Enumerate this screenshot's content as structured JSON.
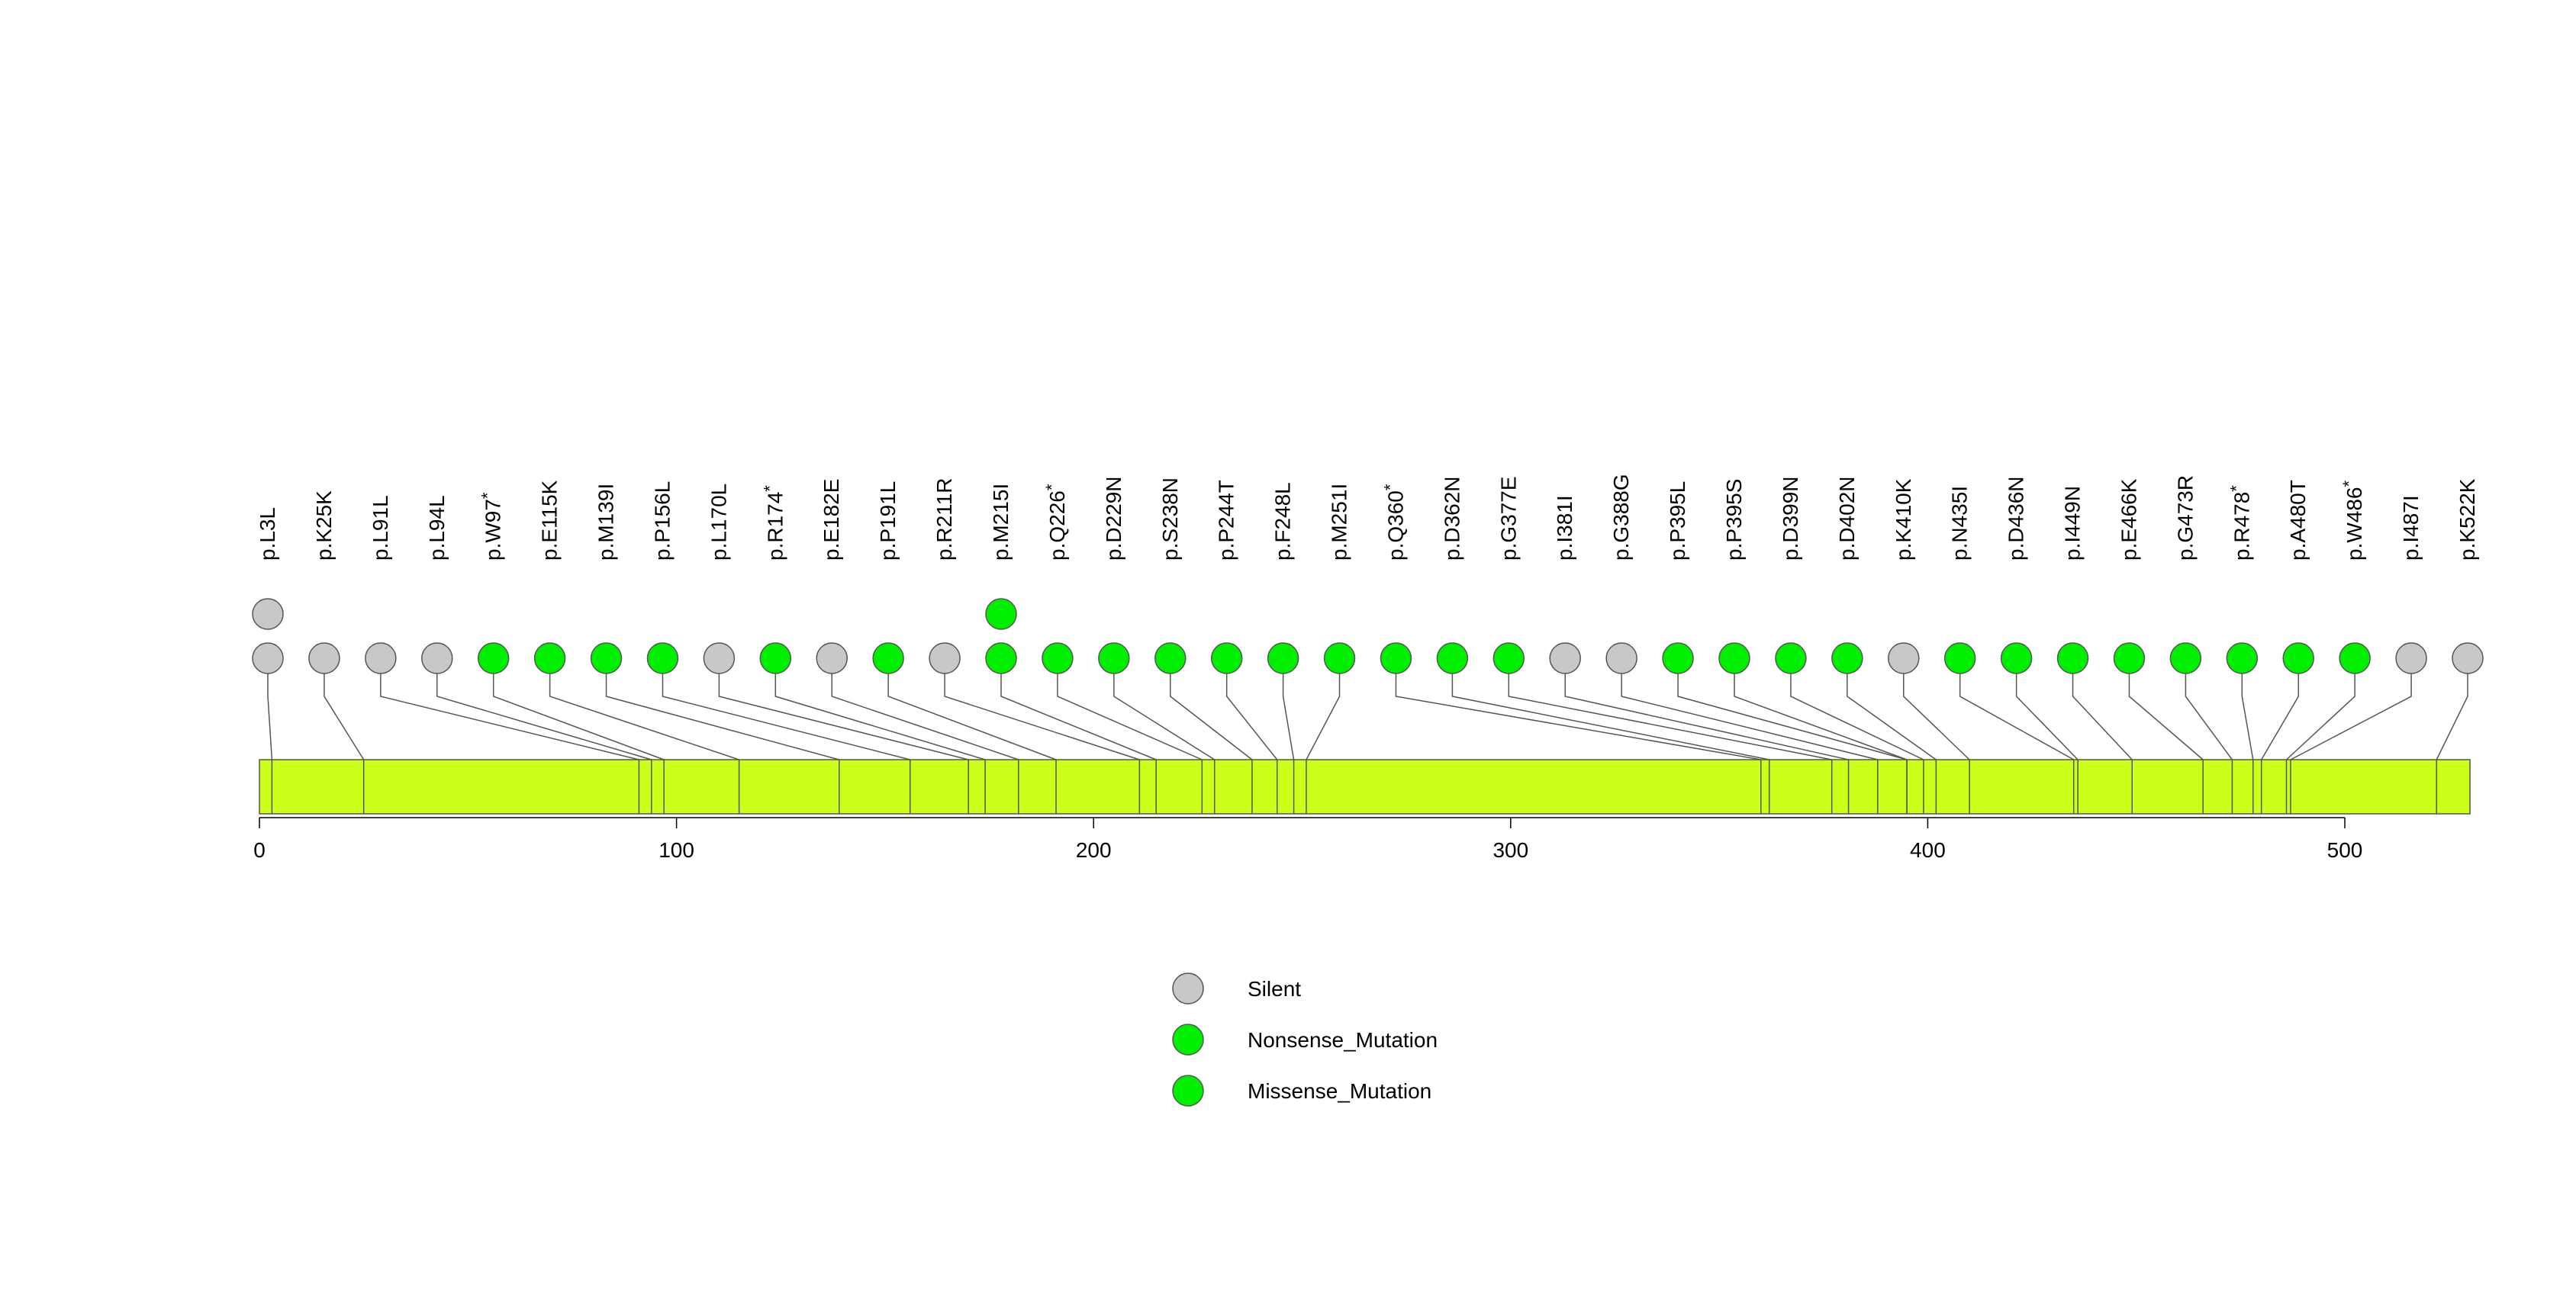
{
  "chart_data": {
    "type": "lollipop",
    "title": "",
    "xlabel": "",
    "ylabel": "",
    "protein_length": 530,
    "xlim": [
      0,
      530
    ],
    "ticks": [
      0,
      100,
      200,
      300,
      400,
      500
    ],
    "track_color": "#CCFF1A",
    "legend": [
      {
        "key": "silent",
        "label": "Silent",
        "color": "#C8C8C8"
      },
      {
        "key": "nonsense",
        "label": "Nonsense_Mutation",
        "color": "#00EE00"
      },
      {
        "key": "missense",
        "label": "Missense_Mutation",
        "color": "#00EE00"
      }
    ],
    "mutations": [
      {
        "label": "p.L3L",
        "pos": 3,
        "count": 2,
        "type": "silent"
      },
      {
        "label": "p.K25K",
        "pos": 25,
        "count": 1,
        "type": "silent"
      },
      {
        "label": "p.L91L",
        "pos": 91,
        "count": 1,
        "type": "silent"
      },
      {
        "label": "p.L94L",
        "pos": 94,
        "count": 1,
        "type": "silent"
      },
      {
        "label": "p.W97",
        "star": true,
        "pos": 97,
        "count": 1,
        "type": "nonsense"
      },
      {
        "label": "p.E115K",
        "pos": 115,
        "count": 1,
        "type": "missense"
      },
      {
        "label": "p.M139I",
        "pos": 139,
        "count": 1,
        "type": "missense"
      },
      {
        "label": "p.P156L",
        "pos": 156,
        "count": 1,
        "type": "missense"
      },
      {
        "label": "p.L170L",
        "pos": 170,
        "count": 1,
        "type": "silent"
      },
      {
        "label": "p.R174",
        "star": true,
        "pos": 174,
        "count": 1,
        "type": "nonsense"
      },
      {
        "label": "p.E182E",
        "pos": 182,
        "count": 1,
        "type": "silent"
      },
      {
        "label": "p.P191L",
        "pos": 191,
        "count": 1,
        "type": "missense"
      },
      {
        "label": "p.R211R",
        "pos": 211,
        "count": 1,
        "type": "silent"
      },
      {
        "label": "p.M215I",
        "pos": 215,
        "count": 2,
        "type": "missense"
      },
      {
        "label": "p.Q226",
        "star": true,
        "pos": 226,
        "count": 1,
        "type": "nonsense"
      },
      {
        "label": "p.D229N",
        "pos": 229,
        "count": 1,
        "type": "missense"
      },
      {
        "label": "p.S238N",
        "pos": 238,
        "count": 1,
        "type": "missense"
      },
      {
        "label": "p.P244T",
        "pos": 244,
        "count": 1,
        "type": "missense"
      },
      {
        "label": "p.F248L",
        "pos": 248,
        "count": 1,
        "type": "missense"
      },
      {
        "label": "p.M251I",
        "pos": 251,
        "count": 1,
        "type": "missense"
      },
      {
        "label": "p.Q360",
        "star": true,
        "pos": 360,
        "count": 1,
        "type": "nonsense"
      },
      {
        "label": "p.D362N",
        "pos": 362,
        "count": 1,
        "type": "missense"
      },
      {
        "label": "p.G377E",
        "pos": 377,
        "count": 1,
        "type": "missense"
      },
      {
        "label": "p.I381I",
        "pos": 381,
        "count": 1,
        "type": "silent"
      },
      {
        "label": "p.G388G",
        "pos": 388,
        "count": 1,
        "type": "silent"
      },
      {
        "label": "p.P395L",
        "pos": 395,
        "count": 1,
        "type": "missense"
      },
      {
        "label": "p.P395S",
        "pos": 395,
        "count": 1,
        "type": "missense"
      },
      {
        "label": "p.D399N",
        "pos": 399,
        "count": 1,
        "type": "missense"
      },
      {
        "label": "p.D402N",
        "pos": 402,
        "count": 1,
        "type": "missense"
      },
      {
        "label": "p.K410K",
        "pos": 410,
        "count": 1,
        "type": "silent"
      },
      {
        "label": "p.N435I",
        "pos": 435,
        "count": 1,
        "type": "missense"
      },
      {
        "label": "p.D436N",
        "pos": 436,
        "count": 1,
        "type": "missense"
      },
      {
        "label": "p.I449N",
        "pos": 449,
        "count": 1,
        "type": "missense"
      },
      {
        "label": "p.E466K",
        "pos": 466,
        "count": 1,
        "type": "missense"
      },
      {
        "label": "p.G473R",
        "pos": 473,
        "count": 1,
        "type": "missense"
      },
      {
        "label": "p.R478",
        "star": true,
        "pos": 478,
        "count": 1,
        "type": "nonsense"
      },
      {
        "label": "p.A480T",
        "pos": 480,
        "count": 1,
        "type": "missense"
      },
      {
        "label": "p.W486",
        "star": true,
        "pos": 486,
        "count": 1,
        "type": "nonsense"
      },
      {
        "label": "p.I487I",
        "pos": 487,
        "count": 1,
        "type": "silent"
      },
      {
        "label": "p.K522K",
        "pos": 522,
        "count": 1,
        "type": "silent"
      }
    ]
  }
}
